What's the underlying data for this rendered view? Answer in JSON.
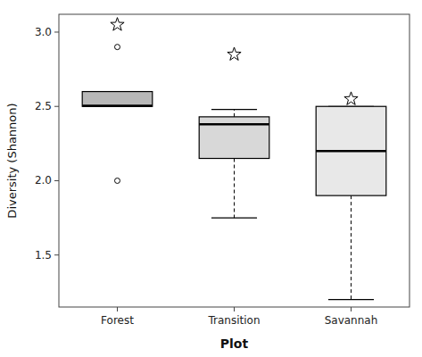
{
  "chart_data": {
    "type": "box",
    "categories": [
      "Forest",
      "Transition",
      "Savannah"
    ],
    "boxes": [
      {
        "q1": 2.5,
        "median": 2.505,
        "q3": 2.6,
        "whisker_low": 2.5,
        "whisker_high": 2.6,
        "outliers": [
          2.0,
          2.9
        ],
        "star": 3.05,
        "color": "#b8b8b8"
      },
      {
        "q1": 2.15,
        "median": 2.38,
        "q3": 2.43,
        "whisker_low": 1.75,
        "whisker_high": 2.48,
        "outliers": [],
        "star": 2.85,
        "color": "#d8d8d8"
      },
      {
        "q1": 1.9,
        "median": 2.2,
        "q3": 2.5,
        "whisker_low": 1.2,
        "whisker_high": 2.5,
        "outliers": [],
        "star": 2.55,
        "color": "#e8e8e8"
      }
    ],
    "xlabel": "Plot",
    "ylabel": "Diversity (Shannon)",
    "ylim": [
      1.15,
      3.12
    ],
    "yticks": [
      1.5,
      {
        "value": 2.0,
        "label": "2.0"
      },
      2.5,
      {
        "value": 3.0,
        "label": "3.0"
      }
    ],
    "grid": false
  }
}
